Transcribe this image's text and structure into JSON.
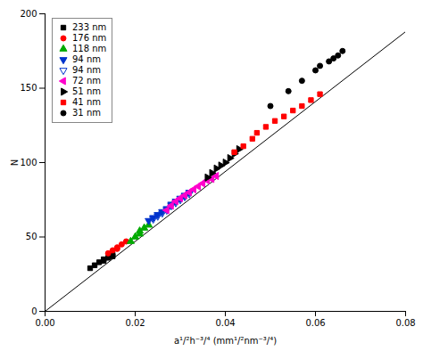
{
  "chart_data": {
    "type": "scatter",
    "xlabel": "a¹/²h⁻³/⁴ (mm¹/²nm⁻³/⁴)",
    "ylabel": "N",
    "xlim": [
      0.0,
      0.08
    ],
    "ylim": [
      0,
      200
    ],
    "xticks": [
      {
        "value": 0,
        "label": "0.00"
      },
      0.02,
      0.04,
      0.06,
      0.08
    ],
    "yticks": [
      0,
      50,
      100,
      150,
      200
    ],
    "legend": "upper left",
    "series": [
      {
        "type": "line",
        "color": "black",
        "x": [
          0.0,
          0.08
        ],
        "values": [
          0,
          188
        ]
      },
      {
        "name": "233 nm",
        "color": "black",
        "marker": "square",
        "x": [
          0.01,
          0.011,
          0.012,
          0.013,
          0.013,
          0.014,
          0.015,
          0.015
        ],
        "values": [
          29,
          31,
          33,
          34,
          35,
          36,
          37,
          38
        ]
      },
      {
        "name": "176 nm",
        "color": "#ff0000",
        "marker": "circle",
        "x": [
          0.014,
          0.015,
          0.016,
          0.016,
          0.017,
          0.018
        ],
        "values": [
          39,
          41,
          42,
          43,
          45,
          47
        ]
      },
      {
        "name": "118 nm",
        "color": "#00aa00",
        "marker": "triangle-up",
        "x": [
          0.019,
          0.02,
          0.021,
          0.021,
          0.022,
          0.023
        ],
        "values": [
          47,
          50,
          52,
          54,
          56,
          58
        ]
      },
      {
        "name": "94 nm",
        "color": "#0033cc",
        "marker": "triangle-down",
        "x": [
          0.023,
          0.024,
          0.025,
          0.026,
          0.027,
          0.028,
          0.029,
          0.03,
          0.031,
          0.032
        ],
        "values": [
          61,
          63,
          65,
          67,
          69,
          72,
          74,
          76,
          78,
          80
        ]
      },
      {
        "name": "94 nm",
        "color": "#0033cc",
        "marker": "triangle-down-open",
        "x": [
          0.024,
          0.025,
          0.026,
          0.027,
          0.028,
          0.029,
          0.03,
          0.031,
          0.032
        ],
        "values": [
          62,
          64,
          66,
          68,
          71,
          73,
          75,
          77,
          79
        ]
      },
      {
        "name": "72 nm",
        "color": "#ff00cc",
        "marker": "triangle-left",
        "x": [
          0.027,
          0.028,
          0.029,
          0.03,
          0.031,
          0.032,
          0.033,
          0.034,
          0.035,
          0.036,
          0.037,
          0.038
        ],
        "values": [
          68,
          71,
          74,
          76,
          78,
          80,
          82,
          84,
          86,
          88,
          89,
          91
        ]
      },
      {
        "name": "51 nm",
        "color": "black",
        "marker": "triangle-right",
        "x": [
          0.036,
          0.037,
          0.038,
          0.039,
          0.04,
          0.041,
          0.042,
          0.043
        ],
        "values": [
          90,
          93,
          96,
          98,
          100,
          103,
          106,
          109
        ]
      },
      {
        "name": "41 nm",
        "color": "#ff0000",
        "marker": "square",
        "x": [
          0.042,
          0.044,
          0.046,
          0.047,
          0.049,
          0.051,
          0.053,
          0.055,
          0.057,
          0.059,
          0.061
        ],
        "values": [
          107,
          111,
          116,
          120,
          124,
          128,
          131,
          135,
          138,
          142,
          146
        ]
      },
      {
        "name": "31 nm",
        "color": "black",
        "marker": "circle",
        "x": [
          0.05,
          0.054,
          0.057,
          0.06,
          0.061,
          0.063,
          0.064,
          0.065,
          0.066
        ],
        "values": [
          138,
          148,
          155,
          162,
          165,
          168,
          170,
          172,
          175
        ]
      }
    ]
  }
}
